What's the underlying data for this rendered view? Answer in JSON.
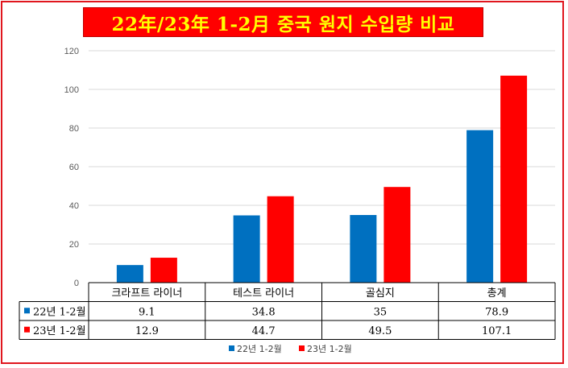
{
  "chart_data": {
    "type": "bar",
    "title": "22年/23年 1-2月 중국 원지 수입량 비교",
    "categories": [
      "크라프트 라이너",
      "테스트 라이너",
      "골심지",
      "총계"
    ],
    "series": [
      {
        "name": "22년 1-2월",
        "values": [
          9.1,
          34.8,
          35,
          78.9
        ],
        "color": "#0070c0"
      },
      {
        "name": "23년 1-2월",
        "values": [
          12.9,
          44.7,
          49.5,
          107.1
        ],
        "color": "#ff0000"
      }
    ],
    "value_labels": [
      [
        "9.1",
        "34.8",
        "35",
        "78.9"
      ],
      [
        "12.9",
        "44.7",
        "49.5",
        "107.1"
      ]
    ],
    "yticks": [
      "0",
      "20",
      "40",
      "60",
      "80",
      "100",
      "120"
    ],
    "ylim": [
      0,
      120
    ],
    "xlabel": "",
    "ylabel": "",
    "grid": true,
    "legend_position": "bottom",
    "data_table": true
  }
}
